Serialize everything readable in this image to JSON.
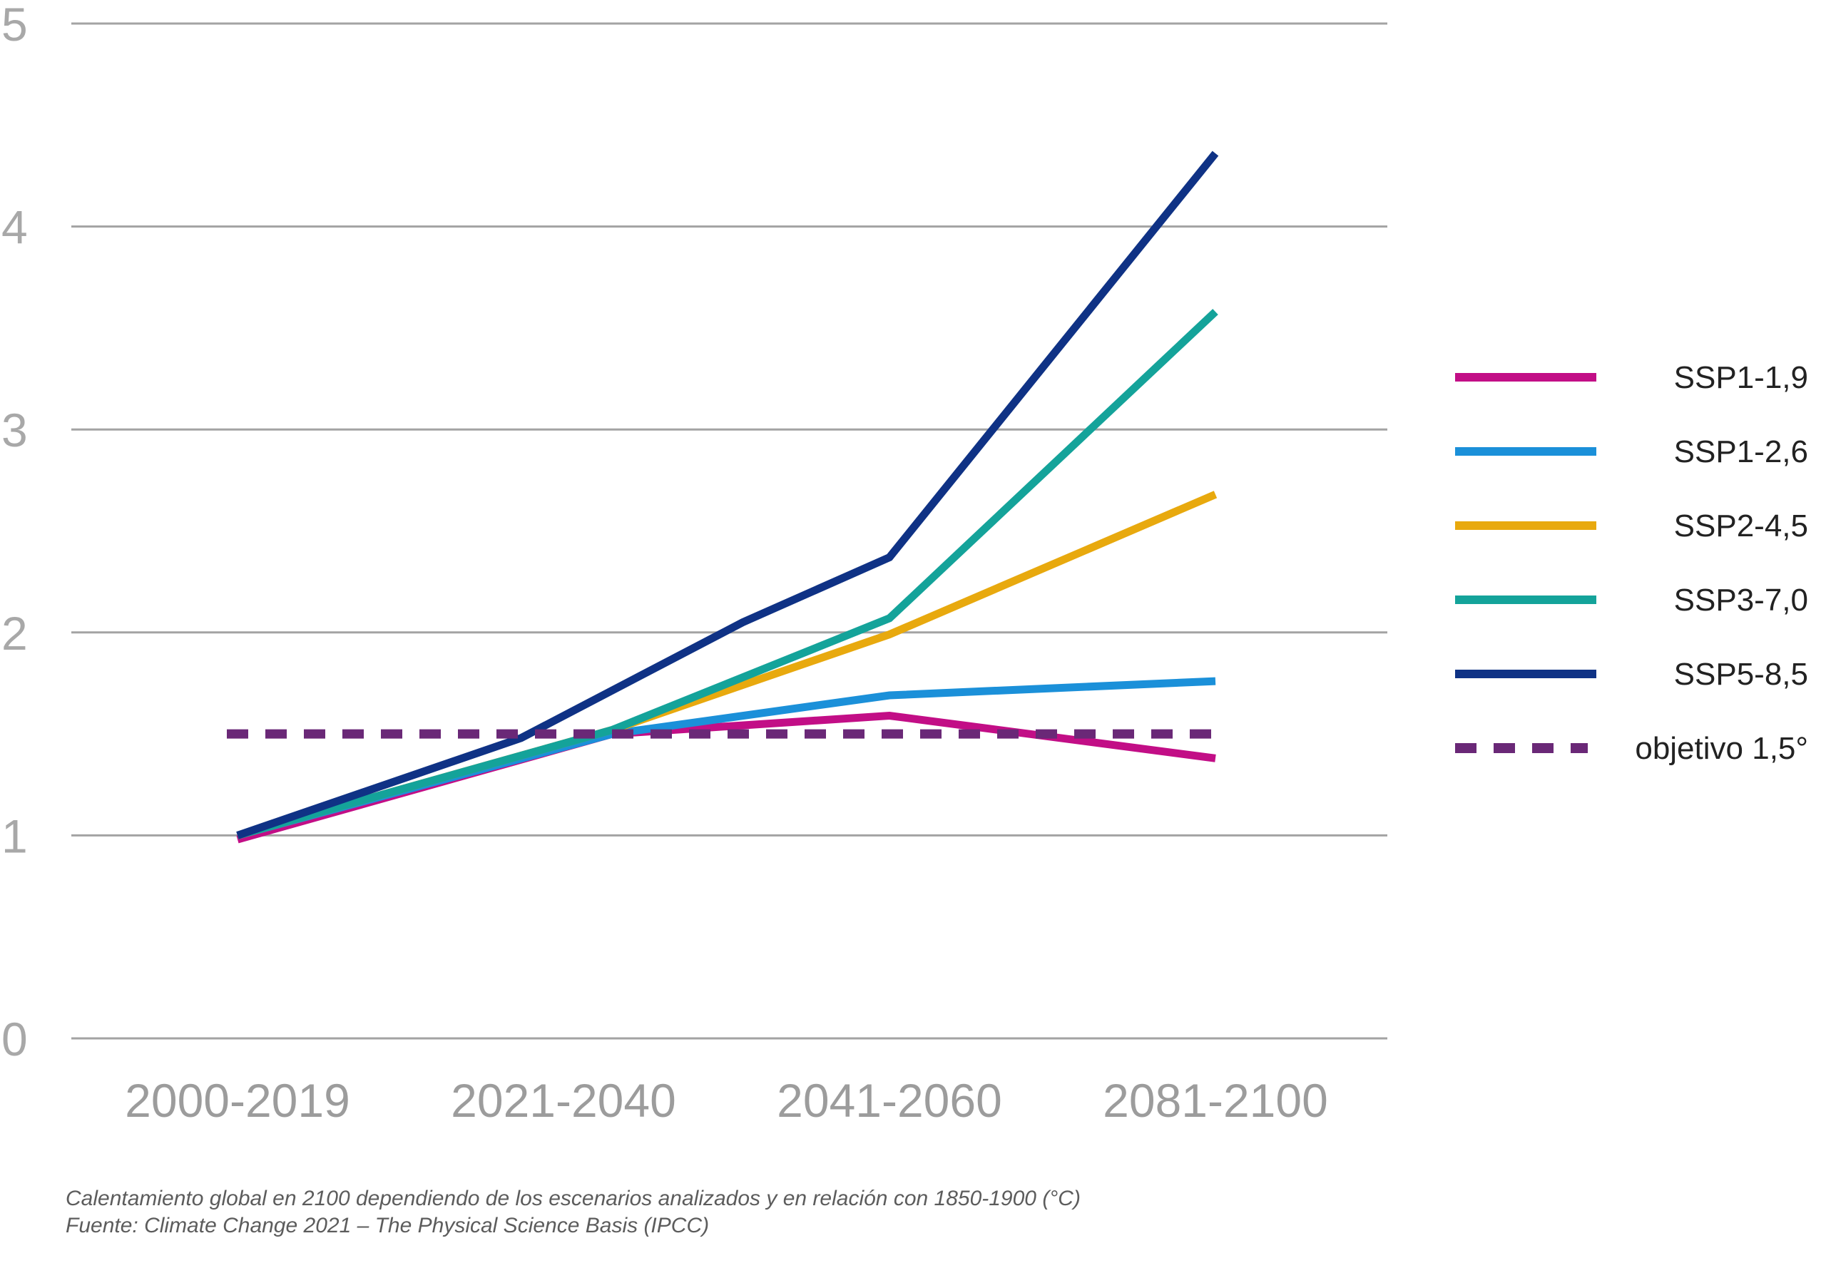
{
  "chart_data": {
    "type": "line",
    "categories": [
      "2000-2019",
      "2021-2040",
      "2041-2060",
      "2081-2100"
    ],
    "yticks": [
      "0",
      "1",
      "2",
      "3",
      "4",
      "5"
    ],
    "ylim": [
      0,
      5
    ],
    "grid": true,
    "legend_position": "right",
    "series": [
      {
        "name": "SSP1-1,9",
        "color": "#C20E86",
        "x": [
          0,
          1.15,
          2.0,
          3.0
        ],
        "y": [
          0.98,
          1.5,
          1.59,
          1.38
        ]
      },
      {
        "name": "SSP1-2,6",
        "color": "#1B90D9",
        "x": [
          0,
          1.15,
          2.0,
          3.0
        ],
        "y": [
          1.0,
          1.5,
          1.69,
          1.76
        ]
      },
      {
        "name": "SSP2-4,5",
        "color": "#E8A90E",
        "x": [
          0,
          1.15,
          2.0,
          3.0
        ],
        "y": [
          1.0,
          1.52,
          1.99,
          2.68
        ]
      },
      {
        "name": "SSP3-7,0",
        "color": "#14A39A",
        "x": [
          0,
          1.15,
          2.0,
          3.0
        ],
        "y": [
          1.0,
          1.52,
          2.07,
          3.58
        ]
      },
      {
        "name": "SSP5-8,5",
        "color": "#0F3285",
        "x": [
          0,
          0.87,
          1.55,
          2.0,
          3.0
        ],
        "y": [
          1.0,
          1.48,
          2.05,
          2.37,
          4.36
        ]
      },
      {
        "name": "objetivo 1,5°",
        "color": "#6A2877",
        "dashed": true,
        "x": [
          0,
          3.0
        ],
        "y": [
          1.5,
          1.5
        ]
      }
    ]
  },
  "caption": {
    "line1": "Calentamiento global en 2100 dependiendo de los escenarios analizados y en relación con 1850-1900 (°C)",
    "line2": "Fuente: Climate Change 2021 – The Physical Science Basis (IPCC)"
  }
}
